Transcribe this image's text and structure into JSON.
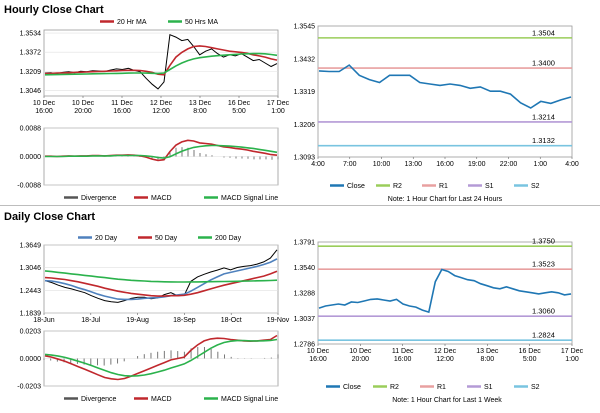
{
  "hourly": {
    "title": "Hourly Close Chart",
    "price_legend": [
      {
        "label": "20 Hr MA",
        "color": "#c0282d"
      },
      {
        "label": "50 Hrs MA",
        "color": "#2bb24c"
      }
    ],
    "macd_legend": [
      {
        "label": "Divergence",
        "color": "#555555"
      },
      {
        "label": "MACD",
        "color": "#c0282d"
      },
      {
        "label": "MACD Signal Line",
        "color": "#2bb24c"
      }
    ],
    "note": "Note: 1 Hour Chart for Last 24 Hours",
    "bottom_legend": [
      {
        "label": "Close",
        "color": "#1f77b4"
      },
      {
        "label": "R2",
        "color": "#9acd5a"
      },
      {
        "label": "R1",
        "color": "#e8a0a0"
      },
      {
        "label": "S1",
        "color": "#b49ad6"
      },
      {
        "label": "S2",
        "color": "#79c4e0"
      }
    ]
  },
  "daily": {
    "title": "Daily Close Chart",
    "price_legend": [
      {
        "label": "20 Day",
        "color": "#4f81bd"
      },
      {
        "label": "50 Day",
        "color": "#c0282d"
      },
      {
        "label": "200 Day",
        "color": "#2bb24c"
      }
    ],
    "macd_legend": [
      {
        "label": "Divergence",
        "color": "#555555"
      },
      {
        "label": "MACD",
        "color": "#c0282d"
      },
      {
        "label": "MACD Signal Line",
        "color": "#2bb24c"
      }
    ],
    "note": "Note: 1 Hour Chart for Last 1 Week",
    "bottom_legend": [
      {
        "label": "Close",
        "color": "#1f77b4"
      },
      {
        "label": "R2",
        "color": "#9acd5a"
      },
      {
        "label": "R1",
        "color": "#e8a0a0"
      },
      {
        "label": "S1",
        "color": "#b49ad6"
      },
      {
        "label": "S2",
        "color": "#79c4e0"
      }
    ]
  },
  "chart_data": [
    {
      "id": "hourly-price",
      "type": "line",
      "x_ticks": [
        "10 Dec\n16:00",
        "10 Dec\n20:00",
        "11 Dec\n16:00",
        "12 Dec\n12:00",
        "13 Dec\n8:00",
        "16 Dec\n5:00",
        "17 Dec\n1:00"
      ],
      "y_ticks": [
        "1.3534",
        "1.3372",
        "1.3209",
        "1.3046"
      ],
      "ylim": [
        1.3,
        1.356
      ],
      "series": [
        {
          "name": "Close",
          "color": "#000000",
          "values": [
            1.3195,
            1.3198,
            1.319,
            1.32,
            1.3205,
            1.3198,
            1.321,
            1.3205,
            1.3215,
            1.3212,
            1.3208,
            1.322,
            1.323,
            1.3225,
            1.3235,
            1.3218,
            1.3205,
            1.315,
            1.31,
            1.306,
            1.312,
            1.352,
            1.35,
            1.347,
            1.348,
            1.342,
            1.335,
            1.338,
            1.34,
            1.336,
            1.333,
            1.335,
            1.334,
            1.336,
            1.333,
            1.33,
            1.331,
            1.328,
            1.325,
            1.3275
          ]
        },
        {
          "name": "20 Hr MA",
          "color": "#c0282d",
          "values": [
            1.319,
            1.3192,
            1.3194,
            1.3196,
            1.3198,
            1.32,
            1.3202,
            1.3204,
            1.3206,
            1.3208,
            1.321,
            1.3212,
            1.3214,
            1.3216,
            1.3218,
            1.3218,
            1.3216,
            1.321,
            1.32,
            1.3185,
            1.318,
            1.326,
            1.333,
            1.337,
            1.34,
            1.342,
            1.3425,
            1.342,
            1.341,
            1.34,
            1.339,
            1.338,
            1.3375,
            1.337,
            1.3362,
            1.335,
            1.334,
            1.333,
            1.3315,
            1.3305
          ]
        },
        {
          "name": "50 Hrs MA",
          "color": "#2bb24c",
          "values": [
            1.318,
            1.3181,
            1.3182,
            1.3183,
            1.3184,
            1.3185,
            1.3186,
            1.3187,
            1.3188,
            1.3189,
            1.319,
            1.3191,
            1.3192,
            1.3193,
            1.3194,
            1.3195,
            1.3195,
            1.3194,
            1.3193,
            1.3192,
            1.3195,
            1.3225,
            1.3255,
            1.328,
            1.33,
            1.3315,
            1.3325,
            1.3332,
            1.3338,
            1.3342,
            1.3346,
            1.335,
            1.3353,
            1.3356,
            1.3358,
            1.336,
            1.336,
            1.3358,
            1.3352,
            1.3345
          ]
        }
      ]
    },
    {
      "id": "hourly-macd",
      "type": "line",
      "y_ticks": [
        "0.0088",
        "0.0000",
        "-0.0088"
      ],
      "ylim": [
        -0.0088,
        0.0088
      ],
      "series": [
        {
          "name": "MACD",
          "color": "#c0282d",
          "values": [
            0.0001,
            0.0001,
            0.0,
            0.0001,
            0.0002,
            0.0001,
            0.0002,
            0.0002,
            0.0003,
            0.0003,
            0.0002,
            0.0003,
            0.0004,
            0.0004,
            0.0005,
            0.0004,
            0.0002,
            -0.0002,
            -0.0008,
            -0.0012,
            -0.001,
            0.0015,
            0.0035,
            0.0045,
            0.005,
            0.0048,
            0.0042,
            0.004,
            0.0038,
            0.0034,
            0.003,
            0.0028,
            0.0025,
            0.0023,
            0.002,
            0.0016,
            0.0013,
            0.001,
            0.0006,
            0.0004
          ]
        },
        {
          "name": "MACD Signal Line",
          "color": "#2bb24c",
          "values": [
            0.0,
            0.0,
            0.0,
            0.0,
            0.0001,
            0.0001,
            0.0001,
            0.0001,
            0.0002,
            0.0002,
            0.0002,
            0.0002,
            0.0003,
            0.0003,
            0.0003,
            0.0003,
            0.0003,
            0.0002,
            0.0,
            -0.0003,
            -0.0005,
            -0.0001,
            0.0008,
            0.0016,
            0.0023,
            0.0028,
            0.0031,
            0.0033,
            0.0034,
            0.0034,
            0.0033,
            0.0032,
            0.0031,
            0.0029,
            0.0027,
            0.0025,
            0.0022,
            0.0019,
            0.0016,
            0.0013
          ]
        }
      ]
    },
    {
      "id": "hourly-pivot",
      "type": "line",
      "x_ticks": [
        "4:00",
        "7:00",
        "10:00",
        "13:00",
        "16:00",
        "19:00",
        "22:00",
        "1:00",
        "4:00"
      ],
      "y_ticks": [
        "1.3545",
        "1.3432",
        "1.3319",
        "1.3206",
        "1.3093"
      ],
      "ylim": [
        1.3093,
        1.3545
      ],
      "levels": [
        {
          "name": "R2",
          "value": 1.3504,
          "label": "1.3504",
          "color": "#9acd5a"
        },
        {
          "name": "R1",
          "value": 1.34,
          "label": "1.3400",
          "color": "#e8a0a0"
        },
        {
          "name": "S1",
          "value": 1.3214,
          "label": "1.3214",
          "color": "#b49ad6"
        },
        {
          "name": "S2",
          "value": 1.3132,
          "label": "1.3132",
          "color": "#79c4e0"
        }
      ],
      "series": [
        {
          "name": "Close",
          "color": "#1f77b4",
          "values": [
            1.339,
            1.3388,
            1.3388,
            1.341,
            1.3375,
            1.336,
            1.335,
            1.3375,
            1.3375,
            1.3375,
            1.335,
            1.3345,
            1.334,
            1.3345,
            1.334,
            1.333,
            1.3335,
            1.332,
            1.332,
            1.331,
            1.328,
            1.3262,
            1.3285,
            1.3278,
            1.329,
            1.33
          ]
        }
      ]
    },
    {
      "id": "daily-price",
      "type": "line",
      "x_ticks": [
        "18-Jun",
        "18-Jul",
        "19-Aug",
        "18-Sep",
        "18-Oct",
        "19-Nov"
      ],
      "y_ticks": [
        "1.3649",
        "1.3046",
        "1.2443",
        "1.1839"
      ],
      "ylim": [
        1.1839,
        1.3649
      ],
      "series": [
        {
          "name": "Close",
          "color": "#000000",
          "values": [
            1.27,
            1.265,
            1.258,
            1.252,
            1.248,
            1.243,
            1.238,
            1.23,
            1.223,
            1.217,
            1.214,
            1.212,
            1.217,
            1.223,
            1.226,
            1.226,
            1.222,
            1.224,
            1.233,
            1.238,
            1.23,
            1.231,
            1.268,
            1.28,
            1.287,
            1.293,
            1.298,
            1.304,
            1.299,
            1.305,
            1.308,
            1.31,
            1.314,
            1.32,
            1.33,
            1.352
          ]
        },
        {
          "name": "20 Day",
          "color": "#4f81bd",
          "values": [
            1.27,
            1.269,
            1.266,
            1.262,
            1.257,
            1.251,
            1.246,
            1.24,
            1.234,
            1.229,
            1.225,
            1.221,
            1.22,
            1.22,
            1.221,
            1.223,
            1.224,
            1.225,
            1.227,
            1.23,
            1.232,
            1.234,
            1.242,
            1.252,
            1.262,
            1.272,
            1.28,
            1.288,
            1.292,
            1.296,
            1.3,
            1.304,
            1.308,
            1.313,
            1.319,
            1.328
          ]
        },
        {
          "name": "50 Day",
          "color": "#c0282d",
          "values": [
            1.278,
            1.277,
            1.275,
            1.273,
            1.27,
            1.267,
            1.263,
            1.259,
            1.255,
            1.25,
            1.246,
            1.242,
            1.239,
            1.236,
            1.234,
            1.232,
            1.23,
            1.229,
            1.229,
            1.23,
            1.23,
            1.231,
            1.234,
            1.238,
            1.243,
            1.248,
            1.253,
            1.258,
            1.262,
            1.266,
            1.27,
            1.274,
            1.278,
            1.282,
            1.288,
            1.295
          ]
        },
        {
          "name": "200 Day",
          "color": "#2bb24c",
          "values": [
            1.296,
            1.294,
            1.292,
            1.29,
            1.288,
            1.286,
            1.284,
            1.282,
            1.28,
            1.278,
            1.276,
            1.274,
            1.2725,
            1.271,
            1.27,
            1.269,
            1.268,
            1.2675,
            1.267,
            1.2668,
            1.2665,
            1.2665,
            1.2666,
            1.2668,
            1.267,
            1.2672,
            1.2675,
            1.2678,
            1.268,
            1.2684,
            1.2688,
            1.2692,
            1.2696,
            1.27,
            1.2705,
            1.2712
          ]
        }
      ]
    },
    {
      "id": "daily-macd",
      "type": "line",
      "y_ticks": [
        "0.0203",
        "0.0000",
        "-0.0203"
      ],
      "ylim": [
        -0.0203,
        0.0203
      ],
      "series": [
        {
          "name": "MACD",
          "color": "#c0282d",
          "values": [
            0.002,
            0.001,
            -0.0005,
            -0.002,
            -0.004,
            -0.006,
            -0.008,
            -0.01,
            -0.012,
            -0.014,
            -0.015,
            -0.0155,
            -0.0148,
            -0.013,
            -0.011,
            -0.009,
            -0.007,
            -0.005,
            -0.003,
            -0.001,
            0.0,
            0.001,
            0.006,
            0.01,
            0.013,
            0.0145,
            0.015,
            0.0148,
            0.014,
            0.0135,
            0.013,
            0.0128,
            0.013,
            0.0135,
            0.014,
            0.017
          ]
        },
        {
          "name": "MACD Signal Line",
          "color": "#2bb24c",
          "values": [
            0.003,
            0.0025,
            0.0018,
            0.0008,
            -0.0005,
            -0.002,
            -0.0035,
            -0.0052,
            -0.007,
            -0.0088,
            -0.0105,
            -0.0118,
            -0.0127,
            -0.013,
            -0.0128,
            -0.0122,
            -0.0112,
            -0.01,
            -0.0086,
            -0.007,
            -0.0055,
            -0.004,
            -0.0015,
            0.0015,
            0.0045,
            0.0075,
            0.01,
            0.0118,
            0.0128,
            0.0132,
            0.0132,
            0.013,
            0.013,
            0.0131,
            0.0133,
            0.014
          ]
        }
      ]
    },
    {
      "id": "daily-pivot",
      "type": "line",
      "x_ticks": [
        "10 Dec\n16:00",
        "10 Dec\n20:00",
        "11 Dec\n16:00",
        "12 Dec\n12:00",
        "13 Dec\n8:00",
        "16 Dec\n5:00",
        "17 Dec\n1:00"
      ],
      "y_ticks": [
        "1.3791",
        "1.3540",
        "1.3288",
        "1.3037",
        "1.2786"
      ],
      "ylim": [
        1.2786,
        1.3791
      ],
      "levels": [
        {
          "name": "R2",
          "value": 1.375,
          "label": "1.3750",
          "color": "#9acd5a"
        },
        {
          "name": "R1",
          "value": 1.3523,
          "label": "1.3523",
          "color": "#e8a0a0"
        },
        {
          "name": "S1",
          "value": 1.306,
          "label": "1.3060",
          "color": "#b49ad6"
        },
        {
          "name": "S2",
          "value": 1.2824,
          "label": "1.2824",
          "color": "#79c4e0"
        }
      ],
      "series": [
        {
          "name": "Close",
          "color": "#1f77b4",
          "values": [
            1.314,
            1.316,
            1.317,
            1.318,
            1.317,
            1.32,
            1.3195,
            1.321,
            1.3225,
            1.323,
            1.322,
            1.321,
            1.3225,
            1.318,
            1.316,
            1.315,
            1.312,
            1.31,
            1.34,
            1.352,
            1.35,
            1.346,
            1.344,
            1.342,
            1.341,
            1.338,
            1.336,
            1.334,
            1.333,
            1.335,
            1.333,
            1.331,
            1.33,
            1.329,
            1.328,
            1.329,
            1.33,
            1.329,
            1.327,
            1.328
          ]
        }
      ]
    }
  ]
}
